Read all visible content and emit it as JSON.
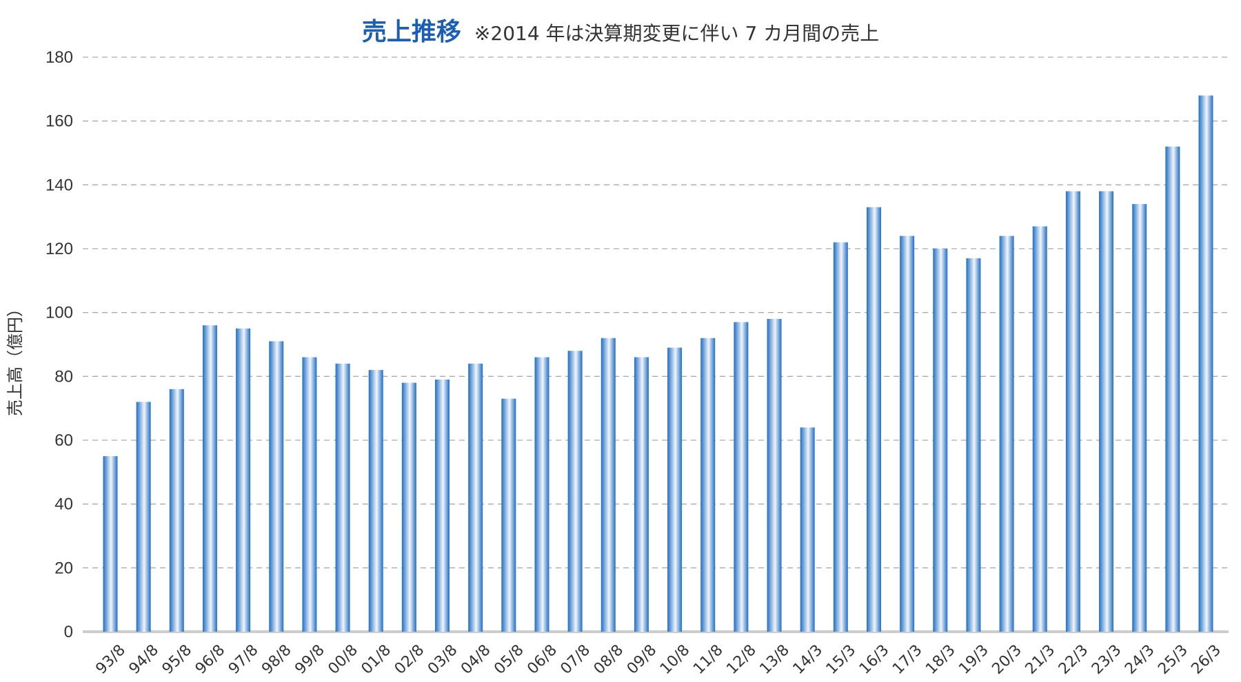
{
  "chart_data": {
    "type": "bar",
    "title": "売上推移",
    "subtitle": "※2014 年は決算期変更に伴い 7 カ月間の売上",
    "xlabel": "",
    "ylabel": "売上高（億円）",
    "ylim": [
      0,
      180
    ],
    "yticks": [
      0,
      20,
      40,
      60,
      80,
      100,
      120,
      140,
      160,
      180
    ],
    "grid": true,
    "categories": [
      "93/8",
      "94/8",
      "95/8",
      "96/8",
      "97/8",
      "98/8",
      "99/8",
      "00/8",
      "01/8",
      "02/8",
      "03/8",
      "04/8",
      "05/8",
      "06/8",
      "07/8",
      "08/8",
      "09/8",
      "10/8",
      "11/8",
      "12/8",
      "13/8",
      "14/3",
      "15/3",
      "16/3",
      "17/3",
      "18/3",
      "19/3",
      "20/3",
      "21/3",
      "22/3",
      "23/3",
      "24/3",
      "25/3",
      "26/3"
    ],
    "values": [
      55,
      72,
      76,
      96,
      95,
      91,
      86,
      84,
      82,
      78,
      79,
      84,
      73,
      86,
      88,
      92,
      86,
      89,
      92,
      97,
      98,
      64,
      122,
      133,
      124,
      120,
      117,
      124,
      127,
      138,
      138,
      134,
      152,
      168
    ],
    "colors": {
      "title": "#1a5fb4",
      "bar_dark": "#1f6fc4",
      "bar_light": "#f2f5fa",
      "grid": "#aaaaaa",
      "axis": "#cccccc"
    }
  }
}
